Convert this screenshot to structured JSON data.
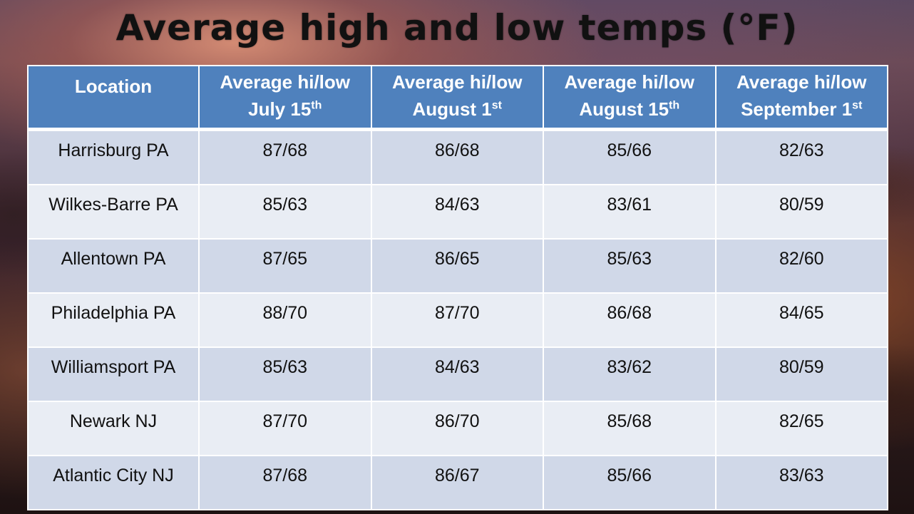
{
  "title": "Average high and low temps (°F)",
  "table": {
    "headers": [
      {
        "main": "Location",
        "line2": "",
        "sup": ""
      },
      {
        "main": "Average hi/low",
        "line2": "July 15",
        "sup": "th"
      },
      {
        "main": "Average hi/low",
        "line2": "August 1",
        "sup": "st"
      },
      {
        "main": "Average hi/low",
        "line2": "August 15",
        "sup": "th"
      },
      {
        "main": "Average hi/low",
        "line2": "September 1",
        "sup": "st"
      }
    ],
    "rows": [
      {
        "location": "Harrisburg PA",
        "jul15": "87/68",
        "aug1": "86/68",
        "aug15": "85/66",
        "sep1": "82/63"
      },
      {
        "location": "Wilkes-Barre PA",
        "jul15": "85/63",
        "aug1": "84/63",
        "aug15": "83/61",
        "sep1": "80/59"
      },
      {
        "location": "Allentown PA",
        "jul15": "87/65",
        "aug1": "86/65",
        "aug15": "85/63",
        "sep1": "82/60"
      },
      {
        "location": "Philadelphia PA",
        "jul15": "88/70",
        "aug1": "87/70",
        "aug15": "86/68",
        "sep1": "84/65"
      },
      {
        "location": "Williamsport PA",
        "jul15": "85/63",
        "aug1": "84/63",
        "aug15": "83/62",
        "sep1": "80/59"
      },
      {
        "location": "Newark NJ",
        "jul15": "87/70",
        "aug1": "86/70",
        "aug15": "85/68",
        "sep1": "82/65"
      },
      {
        "location": "Atlantic City NJ",
        "jul15": "87/68",
        "aug1": "86/67",
        "aug15": "85/66",
        "sep1": "83/63"
      }
    ]
  },
  "colors": {
    "header_bg": "#4f81bd",
    "row_dark": "#d0d8e8",
    "row_light": "#e9edf4",
    "title_text": "#111111"
  }
}
